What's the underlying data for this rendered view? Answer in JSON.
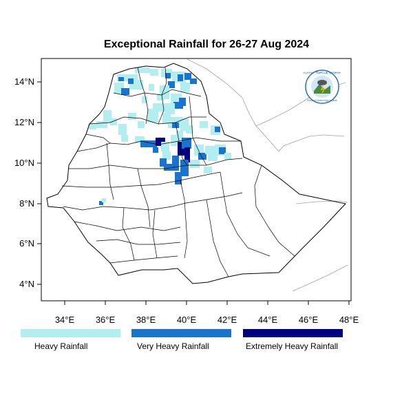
{
  "title": "Exceptional Rainfall for 26-27 Aug 2024",
  "map": {
    "lon_range": [
      32.8,
      48.2
    ],
    "lat_range": [
      3.2,
      15.0
    ],
    "x_ticks": [
      "34°E",
      "36°E",
      "38°E",
      "40°E",
      "42°E",
      "44°E",
      "46°E",
      "48°E"
    ],
    "y_ticks": [
      "4°N",
      "6°N",
      "8°N",
      "10°N",
      "12°N",
      "14°N"
    ],
    "logo": {
      "icon": "ethiopian-meteorology-institute-logo",
      "text_top": "የኢትዮጵያ ሜቲዎሮሎጂ ኢንስቲትዩት",
      "text_bottom": "Ethiopian Meteorology Institute"
    }
  },
  "legend": [
    {
      "label": "Heavy Rainfall",
      "color": "#b2eef0"
    },
    {
      "label": "Very Heavy Rainfall",
      "color": "#1874cd"
    },
    {
      "label": "Extremely Heavy Rainfall",
      "color": "#000080"
    }
  ]
}
